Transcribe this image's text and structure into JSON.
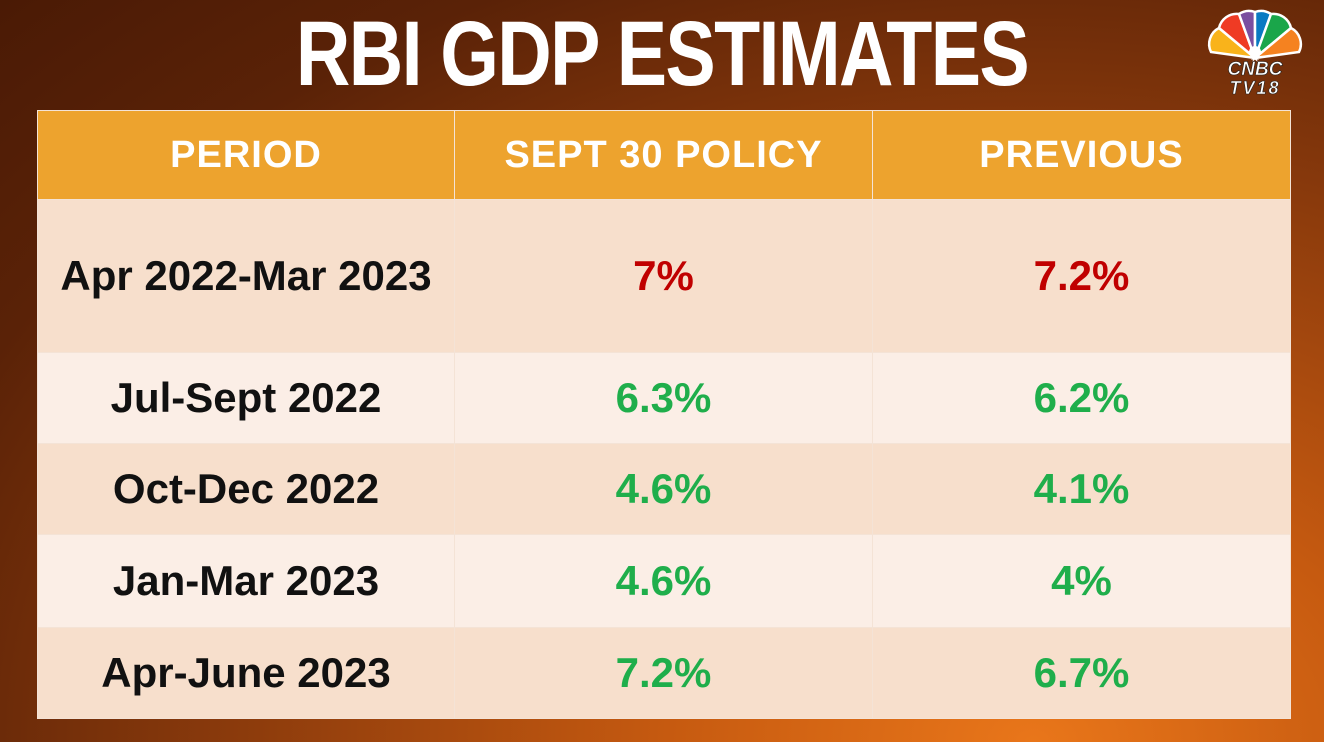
{
  "title": "RBI GDP ESTIMATES",
  "logo": {
    "line1": "CNBC",
    "line2": "TV18",
    "peacock_colors": [
      "#f9b31b",
      "#ef3b24",
      "#7b4fa0",
      "#0a7ac2",
      "#1aa64a",
      "#f58220"
    ]
  },
  "colors": {
    "header_bg": "#eda32e",
    "decrease": "#c00000",
    "increase": "#1fae4b"
  },
  "chart_data": {
    "type": "table",
    "title": "RBI GDP ESTIMATES",
    "columns": [
      "PERIOD",
      "SEPT 30 POLICY",
      "PREVIOUS"
    ],
    "rows": [
      {
        "period": "Apr 2022-Mar 2023",
        "sept30": "7%",
        "previous": "7.2%",
        "color": "decrease"
      },
      {
        "period": "Jul-Sept 2022",
        "sept30": "6.3%",
        "previous": "6.2%",
        "color": "increase"
      },
      {
        "period": "Oct-Dec 2022",
        "sept30": "4.6%",
        "previous": "4.1%",
        "color": "increase"
      },
      {
        "period": "Jan-Mar 2023",
        "sept30": "4.6%",
        "previous": "4%",
        "color": "increase"
      },
      {
        "period": "Apr-June 2023",
        "sept30": "7.2%",
        "previous": "6.7%",
        "color": "increase"
      }
    ]
  }
}
